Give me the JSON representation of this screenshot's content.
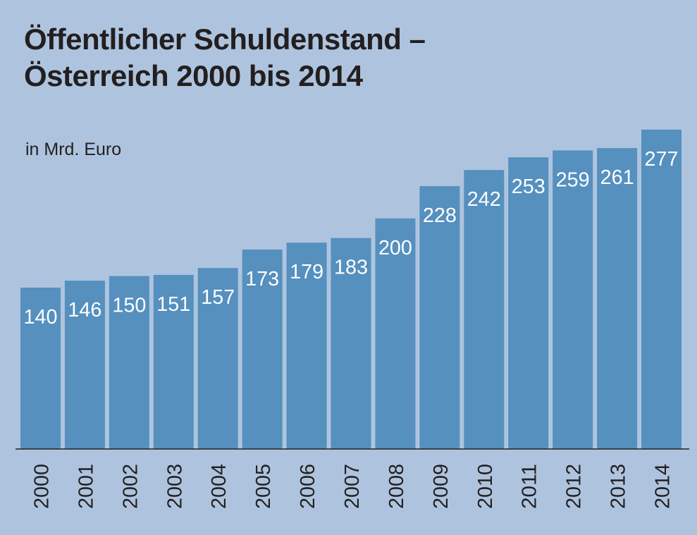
{
  "chart_data": {
    "type": "bar",
    "title_lines": [
      "Öffentlicher Schuldenstand –",
      "Österreich 2000 bis 2014"
    ],
    "unit_label": "in Mrd. Euro",
    "categories": [
      "2000",
      "2001",
      "2002",
      "2003",
      "2004",
      "2005",
      "2006",
      "2007",
      "2008",
      "2009",
      "2010",
      "2011",
      "2012",
      "2013",
      "2014"
    ],
    "values": [
      140,
      146,
      150,
      151,
      157,
      173,
      179,
      183,
      200,
      228,
      242,
      253,
      259,
      261,
      277
    ],
    "ylim": [
      0,
      280
    ],
    "grid": false,
    "data_labels": "inside-top",
    "colors": {
      "background": "#aec4de",
      "bar": "#5590bf",
      "label": "#ffffff",
      "axis": "#231f20"
    }
  }
}
